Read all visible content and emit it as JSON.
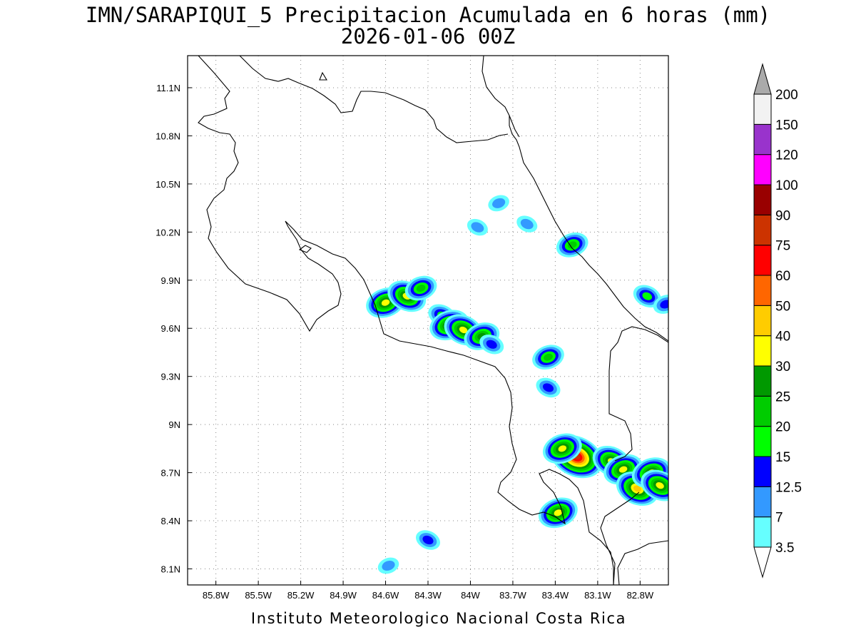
{
  "title": {
    "line1": "IMN/SARAPIQUI_5 Precipitacion Acumulada en 6 horas (mm)",
    "line2": "2026-01-06 00Z"
  },
  "map": {
    "lon_range": [
      -86.0,
      -82.6
    ],
    "lat_range": [
      8.0,
      11.3
    ],
    "lon_ticks": [
      {
        "value": -85.8,
        "label": "85.8W"
      },
      {
        "value": -85.5,
        "label": "85.5W"
      },
      {
        "value": -85.2,
        "label": "85.2W"
      },
      {
        "value": -84.9,
        "label": "84.9W"
      },
      {
        "value": -84.6,
        "label": "84.6W"
      },
      {
        "value": -84.3,
        "label": "84.3W"
      },
      {
        "value": -84.0,
        "label": "84W"
      },
      {
        "value": -83.7,
        "label": "83.7W"
      },
      {
        "value": -83.4,
        "label": "83.4W"
      },
      {
        "value": -83.1,
        "label": "83.1W"
      },
      {
        "value": -82.8,
        "label": "82.8W"
      }
    ],
    "lat_ticks": [
      {
        "value": 8.1,
        "label": "8.1N"
      },
      {
        "value": 8.4,
        "label": "8.4N"
      },
      {
        "value": 8.7,
        "label": "8.7N"
      },
      {
        "value": 9.0,
        "label": "9N"
      },
      {
        "value": 9.3,
        "label": "9.3N"
      },
      {
        "value": 9.6,
        "label": "9.6N"
      },
      {
        "value": 9.9,
        "label": "9.9N"
      },
      {
        "value": 10.2,
        "label": "10.2N"
      },
      {
        "value": 10.5,
        "label": "10.5N"
      },
      {
        "value": 10.8,
        "label": "10.8N"
      },
      {
        "value": 11.1,
        "label": "11.1N"
      }
    ],
    "grid": "dotted",
    "coastline_color": "#000000"
  },
  "colorbar": {
    "levels": [
      {
        "label": "3.5",
        "color": "#66ffff"
      },
      {
        "label": "7",
        "color": "#3399ff"
      },
      {
        "label": "12.5",
        "color": "#0000ff"
      },
      {
        "label": "15",
        "color": "#00ff00"
      },
      {
        "label": "20",
        "color": "#00cc00"
      },
      {
        "label": "25",
        "color": "#009900"
      },
      {
        "label": "30",
        "color": "#ffff00"
      },
      {
        "label": "40",
        "color": "#ffcc00"
      },
      {
        "label": "50",
        "color": "#ff6600"
      },
      {
        "label": "60",
        "color": "#ff0000"
      },
      {
        "label": "75",
        "color": "#cc3300"
      },
      {
        "label": "90",
        "color": "#990000"
      },
      {
        "label": "100",
        "color": "#ff00ff"
      },
      {
        "label": "120",
        "color": "#9933cc"
      },
      {
        "label": "150",
        "color": "#f2f2f2"
      },
      {
        "label": "200",
        "color": "#aaaaaa"
      }
    ],
    "below_min_color": "#ffffff"
  },
  "precip_cells": [
    {
      "lon": -84.6,
      "lat": 9.76,
      "max_mm": 30
    },
    {
      "lon": -84.45,
      "lat": 9.8,
      "max_mm": 30
    },
    {
      "lon": -84.35,
      "lat": 9.85,
      "max_mm": 20
    },
    {
      "lon": -84.2,
      "lat": 9.68,
      "max_mm": 15
    },
    {
      "lon": -84.15,
      "lat": 9.62,
      "max_mm": 30
    },
    {
      "lon": -84.05,
      "lat": 9.59,
      "max_mm": 30
    },
    {
      "lon": -83.92,
      "lat": 9.55,
      "max_mm": 25
    },
    {
      "lon": -83.85,
      "lat": 9.5,
      "max_mm": 12.5
    },
    {
      "lon": -83.45,
      "lat": 9.42,
      "max_mm": 20
    },
    {
      "lon": -83.45,
      "lat": 9.23,
      "max_mm": 12.5
    },
    {
      "lon": -83.28,
      "lat": 10.12,
      "max_mm": 20
    },
    {
      "lon": -82.75,
      "lat": 9.8,
      "max_mm": 15
    },
    {
      "lon": -82.62,
      "lat": 9.75,
      "max_mm": 12.5
    },
    {
      "lon": -83.25,
      "lat": 8.8,
      "max_mm": 75
    },
    {
      "lon": -83.35,
      "lat": 8.85,
      "max_mm": 30
    },
    {
      "lon": -83.0,
      "lat": 8.77,
      "max_mm": 30
    },
    {
      "lon": -82.92,
      "lat": 8.72,
      "max_mm": 30
    },
    {
      "lon": -82.82,
      "lat": 8.6,
      "max_mm": 40
    },
    {
      "lon": -82.72,
      "lat": 8.7,
      "max_mm": 30
    },
    {
      "lon": -82.66,
      "lat": 8.62,
      "max_mm": 30
    },
    {
      "lon": -83.38,
      "lat": 8.45,
      "max_mm": 30
    },
    {
      "lon": -84.3,
      "lat": 8.28,
      "max_mm": 12.5
    },
    {
      "lon": -84.58,
      "lat": 8.12,
      "max_mm": 7
    },
    {
      "lon": -83.95,
      "lat": 10.23,
      "max_mm": 7
    },
    {
      "lon": -83.8,
      "lat": 10.38,
      "max_mm": 7
    },
    {
      "lon": -83.6,
      "lat": 10.25,
      "max_mm": 7
    }
  ],
  "credit": "Instituto Meteorologico Nacional Costa Rica"
}
